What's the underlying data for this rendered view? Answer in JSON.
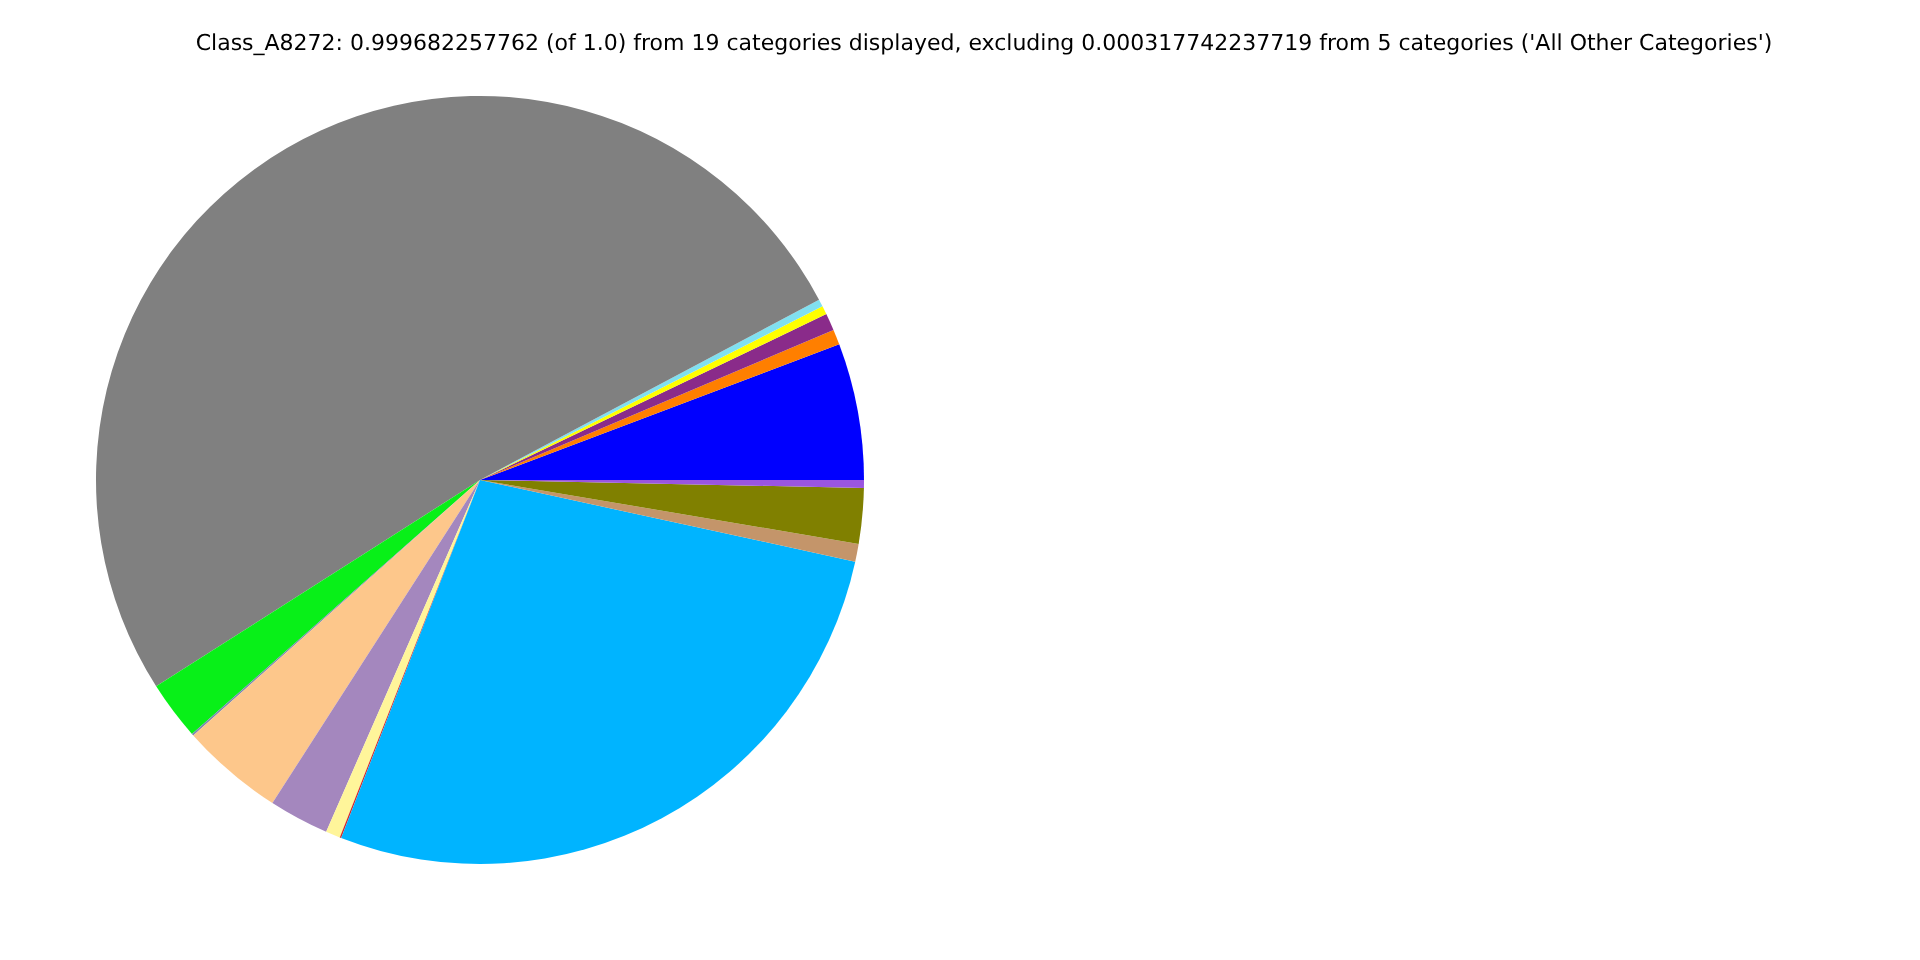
{
  "chart_data": {
    "type": "pie",
    "title": "Class_A8272: 0.999682257762 (of 1.0) from 19 categories displayed, excluding 0.000317742237719 from 5 categories ('All Other Categories')",
    "categories": [
      null,
      null,
      null,
      null,
      null,
      null,
      null,
      null,
      null,
      null,
      null,
      null,
      null,
      null,
      null,
      null
    ],
    "values": [
      5.75,
      0.64,
      0.72,
      0.36,
      0.31,
      51.25,
      2.47,
      0.08,
      4.33,
      2.53,
      0.61,
      0.06,
      27.48,
      0.75,
      2.33,
      0.33
    ],
    "colors": [
      "#0000ff",
      "#ff7f00",
      "#8a2b8a",
      "#ffff00",
      "#80e0f0",
      "#808080",
      "#08f018",
      "#7b8bb0",
      "#fdc78b",
      "#a487be",
      "#fff59a",
      "#d62728",
      "#00b4ff",
      "#c4956a",
      "#808000",
      "#9a55e0"
    ],
    "legend": false
  }
}
